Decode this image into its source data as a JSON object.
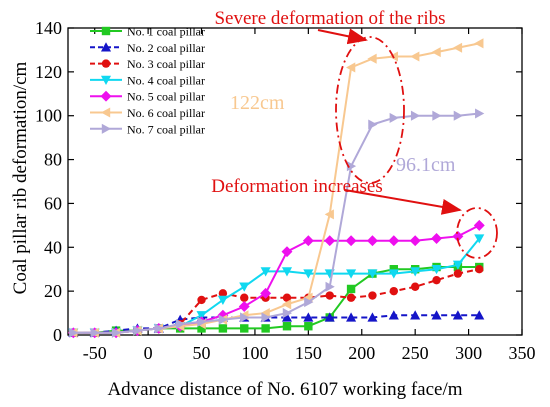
{
  "chart_data": {
    "type": "line",
    "xlabel": "Advance distance of No. 6107 working face/m",
    "ylabel": "Coal pillar rib deformation/cm",
    "xlim": [
      -75,
      350
    ],
    "ylim": [
      0,
      140
    ],
    "xticks": [
      -50,
      0,
      50,
      100,
      150,
      200,
      250,
      300,
      350
    ],
    "yticks": [
      0,
      20,
      40,
      60,
      80,
      100,
      120,
      140
    ],
    "grid": false,
    "legend_position": "top-left",
    "series": [
      {
        "name": "No. 1 coal pillar",
        "color": "#22c922",
        "marker": "square",
        "dashed": false,
        "x": [
          -70,
          -50,
          -30,
          -10,
          10,
          30,
          50,
          70,
          90,
          110,
          130,
          150,
          170,
          190,
          210,
          230,
          250,
          270,
          290,
          310
        ],
        "y": [
          1,
          1,
          2,
          2,
          3,
          3,
          3,
          3,
          3,
          3,
          4,
          4,
          8,
          21,
          28,
          30,
          30,
          31,
          31,
          31
        ]
      },
      {
        "name": "No. 2 coal pillar",
        "color": "#1515c8",
        "marker": "triangle-up",
        "dashed": true,
        "x": [
          -70,
          -50,
          -30,
          -10,
          10,
          30,
          50,
          70,
          90,
          110,
          130,
          150,
          170,
          190,
          210,
          230,
          250,
          270,
          290,
          310
        ],
        "y": [
          1,
          1,
          2,
          3,
          3,
          7,
          8,
          8,
          8,
          8,
          8,
          8,
          8,
          8,
          8,
          9,
          9,
          9,
          9,
          9
        ]
      },
      {
        "name": "No. 3 coal pillar",
        "color": "#e01010",
        "marker": "circle",
        "dashed": true,
        "x": [
          -70,
          -50,
          -30,
          -10,
          10,
          30,
          50,
          70,
          90,
          110,
          130,
          150,
          170,
          190,
          210,
          230,
          250,
          270,
          290,
          310
        ],
        "y": [
          1,
          1,
          1,
          2,
          3,
          5,
          16,
          19,
          17,
          17,
          17,
          17,
          18,
          17,
          18,
          20,
          22,
          25,
          28,
          30
        ]
      },
      {
        "name": "No. 4 coal pillar",
        "color": "#10d8f0",
        "marker": "triangle-down",
        "dashed": false,
        "x": [
          -70,
          -50,
          -30,
          -10,
          10,
          30,
          50,
          70,
          90,
          110,
          130,
          150,
          170,
          190,
          210,
          230,
          250,
          270,
          290,
          310
        ],
        "y": [
          1,
          1,
          1,
          2,
          3,
          4,
          9,
          16,
          22,
          29,
          29,
          28,
          28,
          28,
          28,
          28,
          29,
          30,
          32,
          44
        ]
      },
      {
        "name": "No. 5 coal pillar",
        "color": "#ee10ee",
        "marker": "diamond",
        "dashed": false,
        "x": [
          -70,
          -50,
          -30,
          -10,
          10,
          30,
          50,
          70,
          90,
          110,
          130,
          150,
          170,
          190,
          210,
          230,
          250,
          270,
          290,
          310
        ],
        "y": [
          1,
          1,
          1,
          2,
          3,
          4,
          6,
          9,
          13,
          19,
          38,
          43,
          43,
          43,
          43,
          43,
          43,
          44,
          45,
          50
        ]
      },
      {
        "name": "No. 6 coal pillar",
        "color": "#f8c890",
        "marker": "triangle-left",
        "dashed": false,
        "x": [
          -70,
          -50,
          -30,
          -10,
          10,
          30,
          50,
          70,
          90,
          110,
          130,
          150,
          170,
          190,
          210,
          230,
          250,
          270,
          290,
          310
        ],
        "y": [
          1,
          1,
          1,
          2,
          3,
          4,
          5,
          7,
          9,
          10,
          14,
          17,
          55,
          122,
          126,
          127,
          127,
          129,
          131,
          133
        ]
      },
      {
        "name": "No. 7 coal pillar",
        "color": "#b0a8d8",
        "marker": "triangle-right",
        "dashed": false,
        "x": [
          -70,
          -50,
          -30,
          -10,
          10,
          30,
          50,
          70,
          90,
          110,
          130,
          150,
          170,
          190,
          210,
          230,
          250,
          270,
          290,
          310
        ],
        "y": [
          1,
          1,
          1,
          2,
          3,
          5,
          6,
          7,
          8,
          8,
          10,
          15,
          22,
          77,
          96,
          99,
          100,
          100,
          100,
          101
        ]
      }
    ],
    "annotations": [
      {
        "text": "Severe deformation of the ribs",
        "color": "#e01010"
      },
      {
        "text": "Deformation increases",
        "color": "#e01010"
      },
      {
        "text": "122cm",
        "color": "#f8c890"
      },
      {
        "text": "96.1cm",
        "color": "#b0a8d8"
      }
    ]
  }
}
